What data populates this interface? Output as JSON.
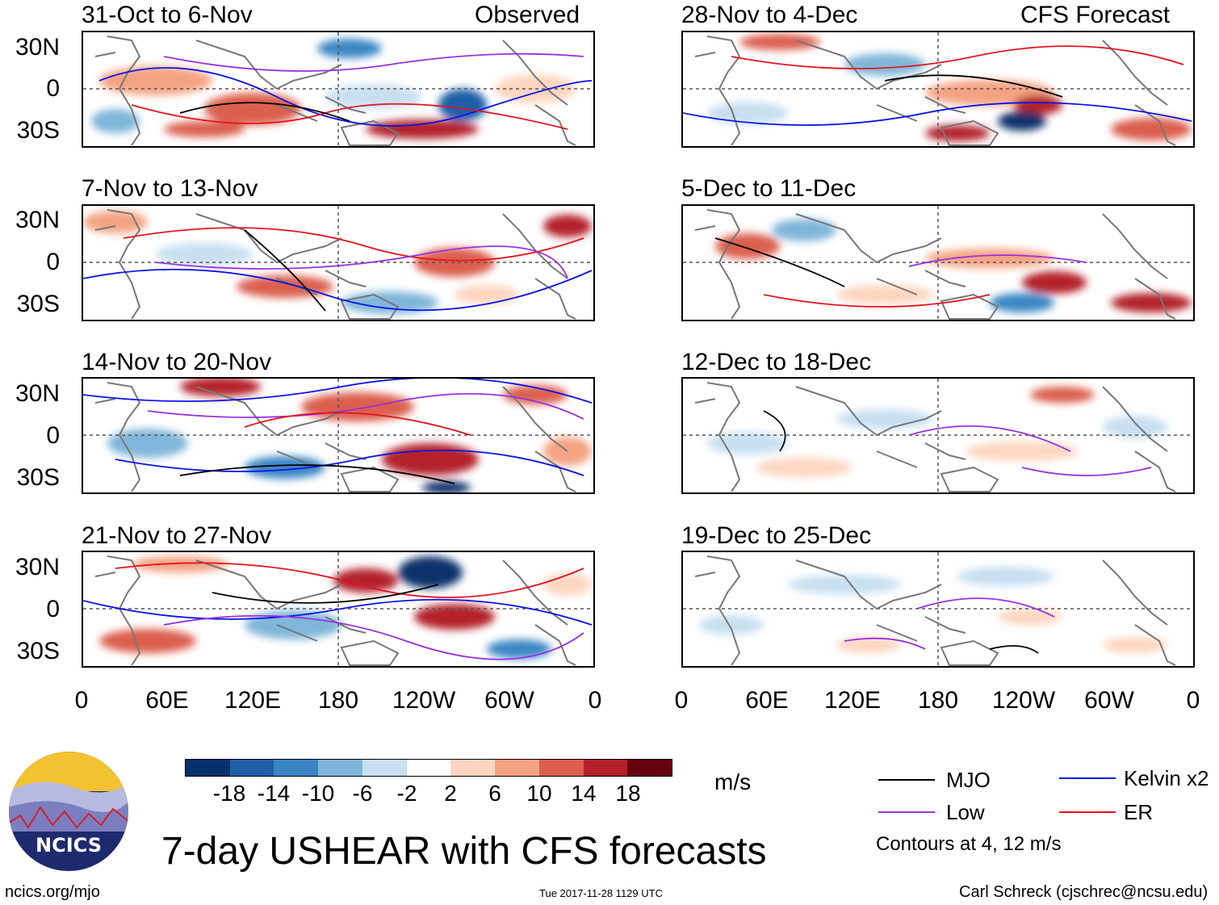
{
  "panels": {
    "observed_label": "Observed",
    "forecast_label": "CFS Forecast",
    "left": [
      {
        "title": "31-Oct to 6-Nov"
      },
      {
        "title": "7-Nov to 13-Nov"
      },
      {
        "title": "14-Nov to 20-Nov"
      },
      {
        "title": "21-Nov to 27-Nov"
      }
    ],
    "right": [
      {
        "title": "28-Nov to 4-Dec"
      },
      {
        "title": "5-Dec to 11-Dec"
      },
      {
        "title": "12-Dec to 18-Dec"
      },
      {
        "title": "19-Dec to 25-Dec"
      }
    ]
  },
  "axes": {
    "lat_labels": [
      "30N",
      "0",
      "30S"
    ],
    "lon_labels": [
      "0",
      "60E",
      "120E",
      "180",
      "120W",
      "60W",
      "0"
    ]
  },
  "colorbar": {
    "unit": "m/s",
    "ticks": [
      "-18",
      "-14",
      "-10",
      "-6",
      "-2",
      "2",
      "6",
      "10",
      "14",
      "18"
    ],
    "colors": [
      "#08306b",
      "#1f5fa8",
      "#3a86c4",
      "#7fb6d9",
      "#c7dff0",
      "#ffffff",
      "#fdd5c0",
      "#f4a382",
      "#db5f4d",
      "#b3202c",
      "#67000d"
    ]
  },
  "legend": {
    "mjo": "MJO",
    "low": "Low",
    "kelvin": "Kelvin x2",
    "er": "ER",
    "contours_note": "Contours at 4, 12 m/s",
    "colors": {
      "mjo": "#000000",
      "low": "#9b30e0",
      "kelvin": "#0a14e6",
      "er": "#e6141e"
    }
  },
  "logo": {
    "text": "NCICS"
  },
  "footer": {
    "title": "7-day USHEAR with CFS forecasts",
    "url": "ncics.org/mjo",
    "timestamp": "Tue 2017-11-28 1129 UTC",
    "credit": "Carl Schreck (cjschrec@ncsu.edu)"
  }
}
